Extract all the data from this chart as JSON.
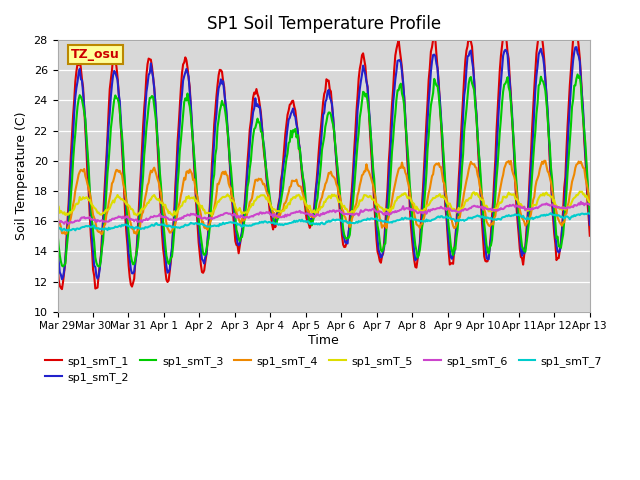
{
  "title": "SP1 Soil Temperature Profile",
  "xlabel": "Time",
  "ylabel": "Soil Temperature (C)",
  "ylim": [
    10,
    28
  ],
  "yticks": [
    10,
    12,
    14,
    16,
    18,
    20,
    22,
    24,
    26,
    28
  ],
  "annotation_text": "TZ_osu",
  "annotation_color": "#cc0000",
  "annotation_bg": "#ffff99",
  "annotation_border": "#bb8800",
  "series_colors": {
    "sp1_smT_1": "#dd0000",
    "sp1_smT_2": "#2222cc",
    "sp1_smT_3": "#00cc00",
    "sp1_smT_4": "#ee8800",
    "sp1_smT_5": "#dddd00",
    "sp1_smT_6": "#cc44cc",
    "sp1_smT_7": "#00cccc"
  },
  "bg_color": "#d8d8d8",
  "line_width": 1.5,
  "n_points": 480,
  "start_day": 0,
  "end_day": 15,
  "xtick_positions": [
    0,
    1,
    2,
    3,
    4,
    5,
    6,
    7,
    8,
    9,
    10,
    11,
    12,
    13,
    14,
    15
  ],
  "xtick_labels": [
    "Mar 29",
    "Mar 30",
    "Mar 31",
    "Apr 1",
    "Apr 2",
    "Apr 3",
    "Apr 4",
    "Apr 5",
    "Apr 6",
    "Apr 7",
    "Apr 8",
    "Apr 9",
    "Apr 10",
    "Apr 11",
    "Apr 12",
    "Apr 13"
  ]
}
